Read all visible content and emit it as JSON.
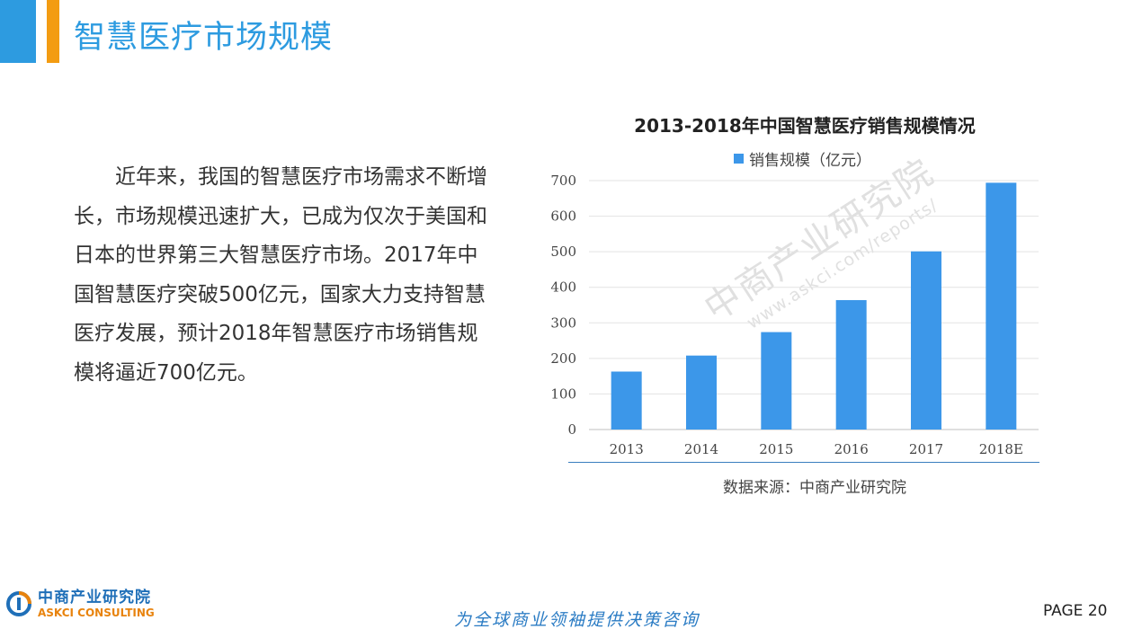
{
  "header": {
    "title": "智慧医疗市场规模",
    "bar_color_blue": "#2d9be0",
    "bar_color_orange": "#f39c12"
  },
  "body": {
    "paragraph": "　　近年来，我国的智慧医疗市场需求不断增长，市场规模迅速扩大，已成为仅次于美国和日本的世界第三大智慧医疗市场。2017年中国智慧医疗突破500亿元，国家大力支持智慧医疗发展，预计2018年智慧医疗市场销售规模将逼近700亿元。"
  },
  "chart_data": {
    "type": "bar",
    "title": "2013-2018年中国智慧医疗销售规模情况",
    "categories": [
      "2013",
      "2014",
      "2015",
      "2016",
      "2017",
      "2018E"
    ],
    "series": [
      {
        "name": "销售规模（亿元）",
        "values": [
          163,
          208,
          274,
          364,
          501,
          694
        ],
        "color": "#3c97e9"
      }
    ],
    "ylim": [
      0,
      700
    ],
    "yticks": [
      0,
      100,
      200,
      300,
      400,
      500,
      600,
      700
    ],
    "grid": true,
    "legend": "top-center"
  },
  "source": {
    "text": "数据来源：中商产业研究院"
  },
  "watermark": {
    "main": "中商产业研究院",
    "url": "www.askci.com/reports/"
  },
  "footer": {
    "logo_cn": "中商产业研究院",
    "logo_en": "ASKCI CONSULTING",
    "slogan": "为全球商业领袖提供决策咨询",
    "page": "PAGE  20"
  }
}
